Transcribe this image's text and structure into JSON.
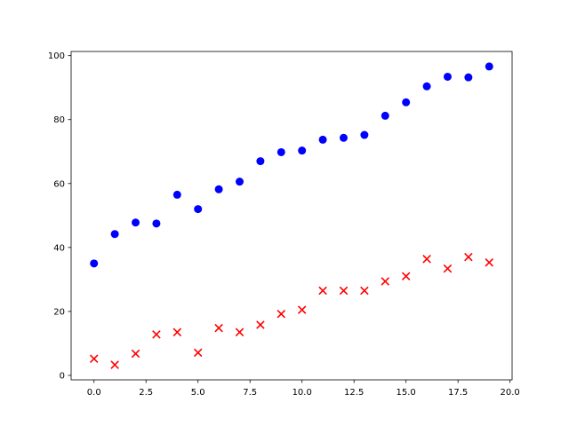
{
  "chart_data": {
    "type": "scatter",
    "x": [
      0,
      1,
      2,
      3,
      4,
      5,
      6,
      7,
      8,
      9,
      10,
      11,
      12,
      13,
      14,
      15,
      16,
      17,
      18,
      19
    ],
    "series": [
      {
        "color": "#0000ff",
        "marker": "o",
        "values": [
          35,
          44.2,
          47.8,
          47.5,
          56.5,
          52,
          58.2,
          60.6,
          67,
          69.8,
          70.3,
          73.7,
          74.3,
          75.2,
          81.2,
          85.4,
          90.4,
          93.4,
          93.2,
          96.6
        ]
      },
      {
        "color": "#ff0000",
        "marker": "x",
        "values": [
          5.2,
          3.3,
          6.8,
          12.8,
          13.5,
          7.1,
          14.8,
          13.5,
          15.8,
          19.2,
          20.5,
          26.5,
          26.5,
          26.5,
          29.4,
          31,
          36.4,
          33.4,
          37,
          35.3
        ]
      }
    ],
    "xlim": [
      -1.1,
      20.1
    ],
    "ylim": [
      -1.4,
      101.3
    ],
    "xticks": [
      {
        "value": 0,
        "label": "0.0"
      },
      {
        "value": 2.5,
        "label": "2.5"
      },
      {
        "value": 5,
        "label": "5.0"
      },
      {
        "value": 7.5,
        "label": "7.5"
      },
      {
        "value": 10,
        "label": "10.0"
      },
      {
        "value": 12.5,
        "label": "12.5"
      },
      {
        "value": 15,
        "label": "15.0"
      },
      {
        "value": 17.5,
        "label": "17.5"
      },
      {
        "value": 20,
        "label": "20.0"
      }
    ],
    "yticks": [
      0,
      20,
      40,
      60,
      80,
      100
    ],
    "grid": false
  }
}
